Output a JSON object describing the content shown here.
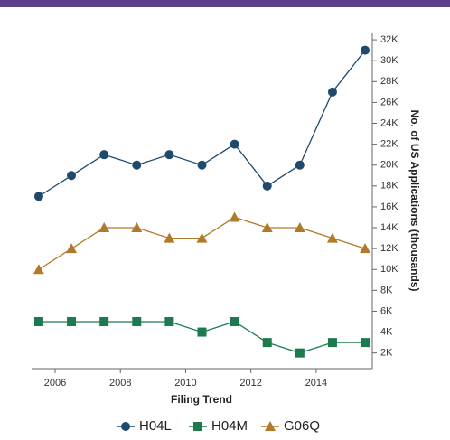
{
  "chart_data": {
    "type": "line",
    "x": [
      2005.5,
      2006.5,
      2007.5,
      2008.5,
      2009.5,
      2010.5,
      2011.5,
      2012.5,
      2013.5,
      2014.5,
      2015.5
    ],
    "series": [
      {
        "name": "H04L",
        "color": "#1f4a6b",
        "marker": "circle",
        "values": [
          17000,
          19000,
          21000,
          20000,
          21000,
          20000,
          22000,
          18000,
          20000,
          27000,
          31000
        ]
      },
      {
        "name": "H04M",
        "color": "#1d7a4e",
        "marker": "square",
        "values": [
          5000,
          5000,
          5000,
          5000,
          5000,
          4000,
          5000,
          3000,
          2000,
          3000,
          3000
        ]
      },
      {
        "name": "G06Q",
        "color": "#b07a2a",
        "marker": "triangle",
        "values": [
          10000,
          12000,
          14000,
          14000,
          13000,
          13000,
          15000,
          14000,
          14000,
          13000,
          12000
        ]
      }
    ],
    "xlabel": "Filing Trend",
    "ylabel": "No. of US Applications (thousands)",
    "xlim": [
      2005.28,
      2015.72
    ],
    "xticks": [
      2006,
      2008,
      2010,
      2012,
      2014
    ],
    "ylim": [
      500,
      32700
    ],
    "yticks": [
      {
        "value": 2000,
        "label": "2K"
      },
      {
        "value": 4000,
        "label": "4K"
      },
      {
        "value": 6000,
        "label": "6K"
      },
      {
        "value": 8000,
        "label": "8K"
      },
      {
        "value": 10000,
        "label": "10K"
      },
      {
        "value": 12000,
        "label": "12K"
      },
      {
        "value": 14000,
        "label": "14K"
      },
      {
        "value": 16000,
        "label": "16K"
      },
      {
        "value": 18000,
        "label": "18K"
      },
      {
        "value": 20000,
        "label": "20K"
      },
      {
        "value": 22000,
        "label": "22K"
      },
      {
        "value": 24000,
        "label": "24K"
      },
      {
        "value": 26000,
        "label": "26K"
      },
      {
        "value": 28000,
        "label": "28K"
      },
      {
        "value": 30000,
        "label": "30K"
      },
      {
        "value": 32000,
        "label": "32K"
      }
    ],
    "yaxis_side": "right",
    "grid": false,
    "legend": "bottom"
  }
}
